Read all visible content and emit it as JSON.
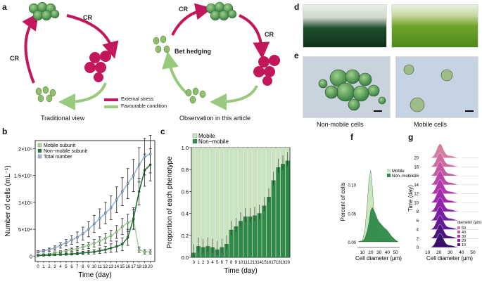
{
  "panels": {
    "a": "a",
    "b": "b",
    "c": "c",
    "d": "d",
    "e": "e",
    "f": "f",
    "g": "g"
  },
  "panel_a": {
    "cr": "CR",
    "left_caption": "Traditional view",
    "right_caption": "Observation in this article",
    "bet_hedging": "Bet hedging",
    "legend": [
      {
        "label": "External stress",
        "color": "#c2185b"
      },
      {
        "label": "Favourable condition",
        "color": "#98c97d"
      }
    ]
  },
  "panel_e": {
    "left_caption": "Non-mobile cells",
    "right_caption": "Mobile cells"
  },
  "chart_data": [
    {
      "id": "b",
      "type": "line",
      "ylabel": "Number of cells (mL⁻¹)",
      "xlabel": "Time (day)",
      "x": [
        0,
        1,
        2,
        3,
        4,
        5,
        6,
        7,
        8,
        9,
        10,
        11,
        12,
        13,
        14,
        15,
        16,
        17,
        18,
        19,
        20
      ],
      "xlim": [
        -0.5,
        20.8
      ],
      "ylim": [
        -10000,
        215000
      ],
      "yticks": [
        0,
        50000,
        100000,
        150000,
        200000
      ],
      "yticklabels": [
        "0",
        "5×10⁴",
        "1×10⁵",
        "1.5×10⁵",
        "2×10⁵"
      ],
      "series": [
        {
          "name": "Mobile subunit",
          "color": "#a8d99a",
          "values": [
            2000,
            3000,
            4000,
            6000,
            8000,
            10000,
            12000,
            14000,
            17000,
            20000,
            24000,
            28000,
            33000,
            38000,
            45000,
            55000,
            62000,
            68000,
            12000,
            8000,
            8000
          ],
          "err": [
            1000,
            1000,
            1000,
            2000,
            2000,
            3000,
            3000,
            4000,
            5000,
            6000,
            7000,
            8000,
            9000,
            10000,
            12000,
            15000,
            16000,
            18000,
            5000,
            4000,
            4000
          ]
        },
        {
          "name": "Non−mobile subunit",
          "color": "#1e7a3a",
          "values": [
            1000,
            1500,
            2000,
            2500,
            3000,
            3500,
            4000,
            5000,
            6000,
            7000,
            8000,
            10000,
            12000,
            15000,
            18000,
            22000,
            35000,
            70000,
            120000,
            160000,
            170000
          ],
          "err": [
            500,
            700,
            900,
            1100,
            1300,
            1500,
            2000,
            2500,
            3000,
            3500,
            4000,
            5000,
            6000,
            8000,
            10000,
            12000,
            15000,
            20000,
            25000,
            30000,
            30000
          ]
        },
        {
          "name": "Total number",
          "color": "#9ab8dc",
          "values": [
            8000,
            10000,
            12000,
            15000,
            20000,
            25000,
            30000,
            35000,
            42000,
            50000,
            60000,
            70000,
            80000,
            90000,
            105000,
            120000,
            135000,
            150000,
            170000,
            185000,
            190000
          ],
          "err": [
            2000,
            2500,
            3000,
            4000,
            5000,
            6000,
            8000,
            10000,
            12000,
            14000,
            16000,
            18000,
            20000,
            22000,
            24000,
            26000,
            28000,
            30000,
            32000,
            34000,
            35000
          ]
        }
      ]
    },
    {
      "id": "c",
      "type": "bar",
      "ylabel": "Proportion of each phenotype",
      "xlabel": "Time (day)",
      "categories": [
        "0",
        "1",
        "2",
        "3",
        "4",
        "5",
        "6",
        "7",
        "8",
        "9",
        "10",
        "11",
        "12",
        "13",
        "14",
        "15",
        "16",
        "17",
        "18",
        "19",
        "20"
      ],
      "ylim": [
        0,
        1.0
      ],
      "yticks": [
        0,
        0.2,
        0.4,
        0.6,
        0.8,
        1.0
      ],
      "yticklabels": [
        "0.0",
        "0.2",
        "0.4",
        "0.6",
        "0.8",
        "1.0"
      ],
      "series": [
        {
          "name": "Mobile",
          "color": "#c8e6bd"
        },
        {
          "name": "Non−mobile",
          "color": "#2e8b47",
          "values": [
            0.04,
            0.1,
            0.09,
            0.1,
            0.09,
            0.07,
            0.09,
            0.12,
            0.25,
            0.28,
            0.33,
            0.37,
            0.37,
            0.38,
            0.4,
            0.47,
            0.55,
            0.7,
            0.82,
            0.85,
            0.88
          ]
        }
      ]
    },
    {
      "id": "f",
      "type": "area",
      "ylabel": "Percent of cells",
      "xlabel": "Cell diameter (μm)",
      "xlim": [
        4,
        55
      ],
      "ylim": [
        -0.01,
        0.15
      ],
      "xticks": [
        10,
        20,
        30,
        40,
        50
      ],
      "yticks": [
        0.0,
        0.05,
        0.1
      ],
      "yticklabels": [
        "0.00",
        "0.05",
        "0.10"
      ],
      "series": [
        {
          "name": "Mobile",
          "color": "#c8e6bd",
          "x": [
            5,
            10,
            13,
            16,
            18,
            20,
            22,
            24,
            26,
            28,
            30,
            33,
            36,
            40,
            45,
            50,
            53
          ],
          "values": [
            0,
            0.002,
            0.02,
            0.07,
            0.11,
            0.125,
            0.095,
            0.05,
            0.025,
            0.012,
            0.007,
            0.004,
            0.002,
            0.001,
            0,
            0,
            0
          ]
        },
        {
          "name": "Non−mobile",
          "color": "#2e8b47",
          "x": [
            5,
            10,
            13,
            16,
            18,
            20,
            22,
            24,
            26,
            28,
            30,
            33,
            36,
            40,
            45,
            50,
            53
          ],
          "values": [
            0,
            0.001,
            0.006,
            0.02,
            0.035,
            0.055,
            0.06,
            0.055,
            0.048,
            0.04,
            0.035,
            0.03,
            0.025,
            0.02,
            0.01,
            0.003,
            0
          ]
        }
      ]
    },
    {
      "id": "g",
      "type": "area",
      "ylabel": "Time (day)",
      "xlabel": "Cell diameter (μm)",
      "xticks": [
        10,
        20,
        30,
        40,
        50
      ],
      "xlim": [
        4,
        55
      ],
      "days": [
        0,
        2,
        4,
        6,
        8,
        10,
        12,
        14,
        16,
        18,
        20
      ],
      "legend_title": "diameter (μm)",
      "legend_values": [
        "50",
        "40",
        "30",
        "20",
        "10"
      ]
    }
  ]
}
